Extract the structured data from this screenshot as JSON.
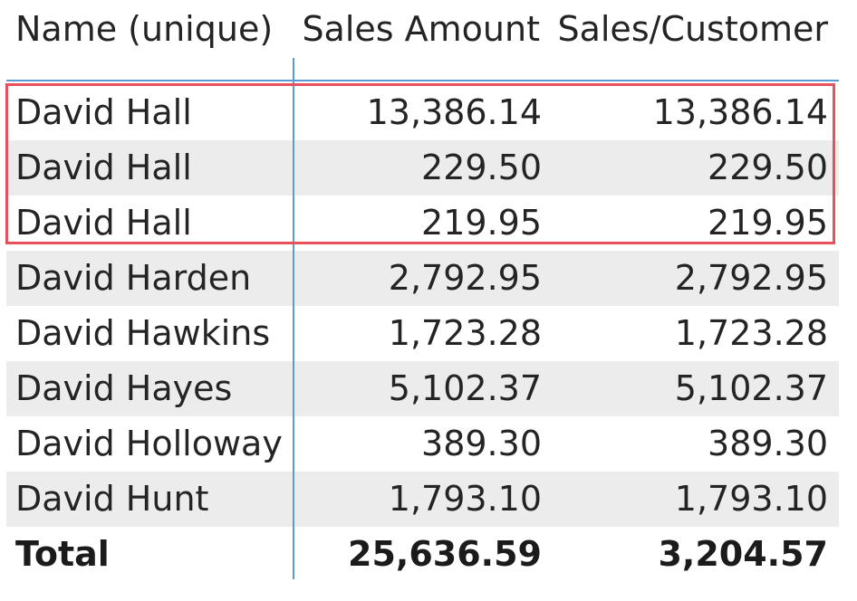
{
  "table": {
    "columns": {
      "name": "Name (unique)",
      "sales_amount": "Sales Amount",
      "sales_per_customer": "Sales/Customer"
    },
    "rows": [
      {
        "name": "David Hall",
        "sales_amount": "13,386.14",
        "sales_per_customer": "13,386.14"
      },
      {
        "name": "David Hall",
        "sales_amount": "229.50",
        "sales_per_customer": "229.50"
      },
      {
        "name": "David Hall",
        "sales_amount": "219.95",
        "sales_per_customer": "219.95"
      },
      {
        "name": "David Harden",
        "sales_amount": "2,792.95",
        "sales_per_customer": "2,792.95"
      },
      {
        "name": "David Hawkins",
        "sales_amount": "1,723.28",
        "sales_per_customer": "1,723.28"
      },
      {
        "name": "David Hayes",
        "sales_amount": "5,102.37",
        "sales_per_customer": "5,102.37"
      },
      {
        "name": "David Holloway",
        "sales_amount": "389.30",
        "sales_per_customer": "389.30"
      },
      {
        "name": "David Hunt",
        "sales_amount": "1,793.10",
        "sales_per_customer": "1,793.10"
      }
    ],
    "total": {
      "label": "Total",
      "sales_amount": "25,636.59",
      "sales_per_customer": "3,204.57"
    }
  },
  "colors": {
    "accent_line": "#5b9bd5",
    "highlight_border": "#e8505b",
    "alt_row_bg": "#ececec",
    "text": "#252423"
  }
}
